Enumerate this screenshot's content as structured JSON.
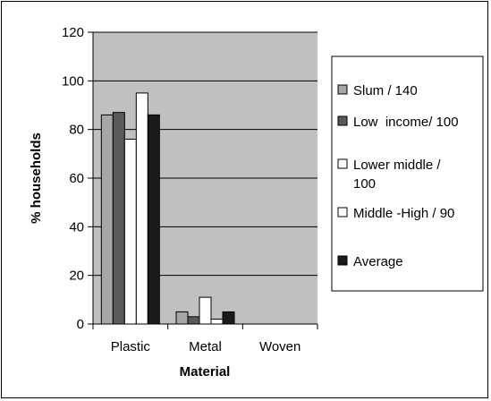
{
  "chart_data": {
    "type": "bar",
    "categories": [
      "Plastic",
      "Metal",
      "Woven"
    ],
    "series": [
      {
        "name": "Slum / 140",
        "values": [
          86,
          5,
          0
        ],
        "color": "#a6a6a6"
      },
      {
        "name": "Low  income/ 100",
        "values": [
          87,
          3,
          0
        ],
        "color": "#595959"
      },
      {
        "name": "Lower middle / 100",
        "values": [
          76,
          11,
          0
        ],
        "color": "#ffffff"
      },
      {
        "name": "Middle -High / 90",
        "values": [
          95,
          2,
          0
        ],
        "color": "#ffffff"
      },
      {
        "name": "Average",
        "values": [
          86,
          5,
          0
        ],
        "color": "#1a1a1a"
      }
    ],
    "xlabel": "Material",
    "ylabel": "% households",
    "ylim": [
      0,
      120
    ],
    "yticks": [
      "0",
      "20",
      "40",
      "60",
      "80",
      "100",
      "120"
    ],
    "grid": true,
    "plot_background": "#c0c0c0",
    "legend_position": "right"
  }
}
